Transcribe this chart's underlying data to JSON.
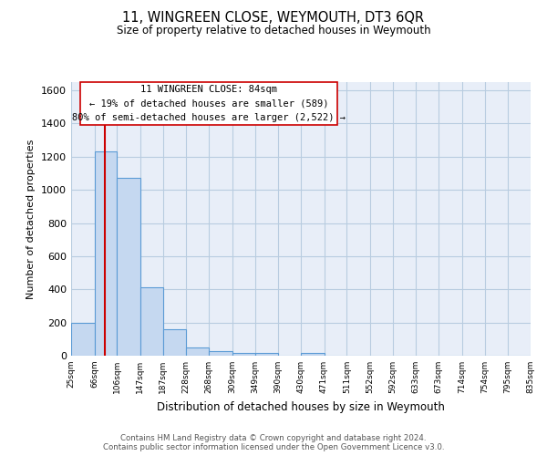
{
  "title": "11, WINGREEN CLOSE, WEYMOUTH, DT3 6QR",
  "subtitle": "Size of property relative to detached houses in Weymouth",
  "xlabel": "Distribution of detached houses by size in Weymouth",
  "ylabel": "Number of detached properties",
  "bin_edges": [
    25,
    66,
    106,
    147,
    187,
    228,
    268,
    309,
    349,
    390,
    430,
    471,
    511,
    552,
    592,
    633,
    673,
    714,
    754,
    795,
    835
  ],
  "bar_heights": [
    200,
    1230,
    1070,
    410,
    160,
    50,
    25,
    15,
    15,
    0,
    15,
    0,
    0,
    0,
    0,
    0,
    0,
    0,
    0,
    0
  ],
  "bar_color": "#c5d8f0",
  "bar_edgecolor": "#5b9bd5",
  "property_line_x": 84,
  "property_line_color": "#cc0000",
  "annotation_line1": "11 WINGREEN CLOSE: 84sqm",
  "annotation_line2": "← 19% of detached houses are smaller (589)",
  "annotation_line3": "80% of semi-detached houses are larger (2,522) →",
  "ylim": [
    0,
    1650
  ],
  "yticks": [
    0,
    200,
    400,
    600,
    800,
    1000,
    1200,
    1400,
    1600
  ],
  "background_color": "#ffffff",
  "axes_facecolor": "#e8eef8",
  "grid_color": "#b8cce0",
  "footer_line1": "Contains HM Land Registry data © Crown copyright and database right 2024.",
  "footer_line2": "Contains public sector information licensed under the Open Government Licence v3.0.",
  "tick_labels": [
    "25sqm",
    "66sqm",
    "106sqm",
    "147sqm",
    "187sqm",
    "228sqm",
    "268sqm",
    "309sqm",
    "349sqm",
    "390sqm",
    "430sqm",
    "471sqm",
    "511sqm",
    "552sqm",
    "592sqm",
    "633sqm",
    "673sqm",
    "714sqm",
    "754sqm",
    "795sqm",
    "835sqm"
  ]
}
